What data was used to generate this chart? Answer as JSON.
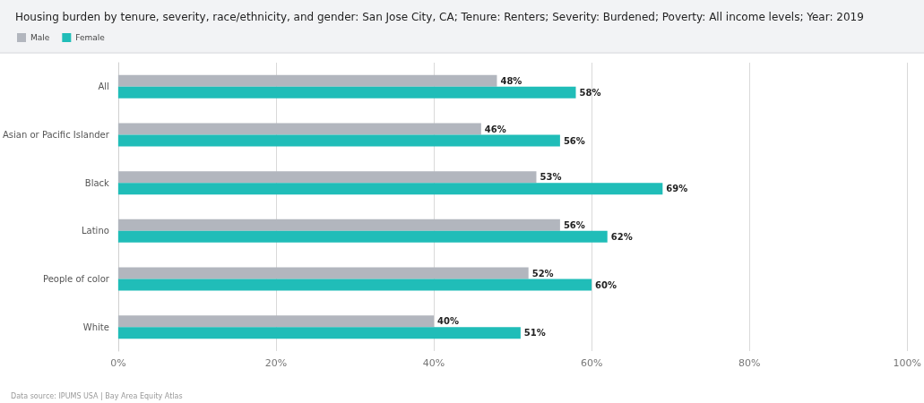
{
  "chart_data": {
    "type": "bar",
    "orientation": "horizontal",
    "title": "Housing burden by tenure, severity, race/ethnicity, and gender: San Jose City, CA; Tenure: Renters; Severity: Burdened; Poverty: All income levels; Year: 2019",
    "categories": [
      "All",
      "Asian or Pacific Islander",
      "Black",
      "Latino",
      "People of color",
      "White"
    ],
    "series": [
      {
        "name": "Male",
        "color": "#b2b6be",
        "values": [
          48,
          46,
          53,
          56,
          52,
          40
        ],
        "value_labels": [
          "48%",
          "46%",
          "53%",
          "56%",
          "52%",
          "40%"
        ]
      },
      {
        "name": "Female",
        "color": "#20bdb8",
        "values": [
          58,
          56,
          69,
          62,
          60,
          51
        ],
        "value_labels": [
          "58%",
          "56%",
          "69%",
          "62%",
          "60%",
          "51%"
        ]
      }
    ],
    "xlim": [
      0,
      100
    ],
    "xticks": [
      {
        "value": 0,
        "label": "0%"
      },
      {
        "value": 20,
        "label": "20%"
      },
      {
        "value": 40,
        "label": "40%"
      },
      {
        "value": 60,
        "label": "60%"
      },
      {
        "value": 80,
        "label": "80%"
      },
      {
        "value": 100,
        "label": "100%"
      }
    ],
    "grid": "x",
    "legend": "top left",
    "annotations": [
      "Data source: IPUMS USA | Bay Area Equity Atlas"
    ]
  }
}
